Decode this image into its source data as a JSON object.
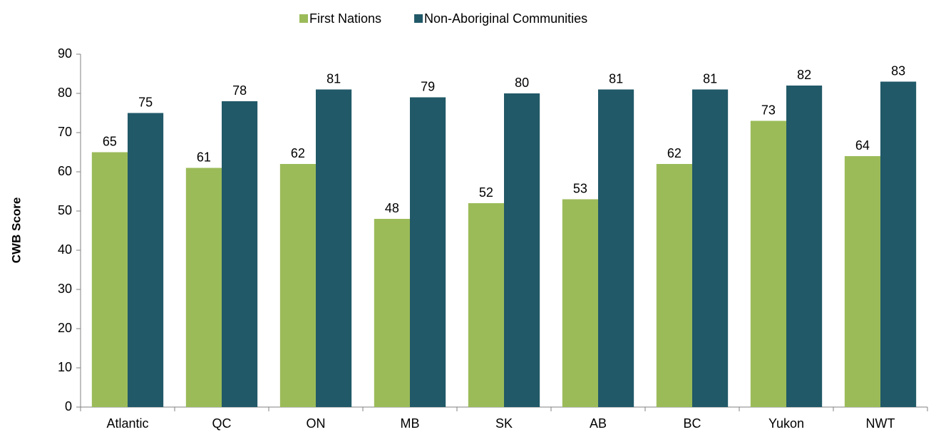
{
  "chart_data": {
    "type": "bar",
    "y_label": "CWB Score",
    "categories": [
      "Atlantic",
      "QC",
      "ON",
      "MB",
      "SK",
      "AB",
      "BC",
      "Yukon",
      "NWT"
    ],
    "series": [
      {
        "name": "First Nations",
        "color": "#9bbb59",
        "values": [
          65,
          61,
          62,
          48,
          52,
          53,
          62,
          73,
          64
        ]
      },
      {
        "name": "Non-Aboriginal Communities",
        "color": "#215968",
        "values": [
          75,
          78,
          81,
          79,
          80,
          81,
          81,
          82,
          83
        ]
      }
    ],
    "ylim": [
      0,
      90
    ],
    "yticks": [
      0,
      10,
      20,
      30,
      40,
      50,
      60,
      70,
      80,
      90
    ],
    "legend": "top",
    "grid": false
  }
}
